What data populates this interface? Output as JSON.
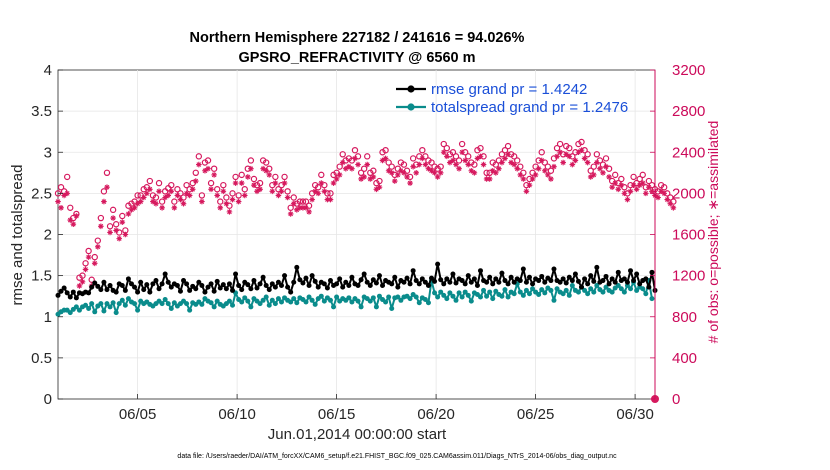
{
  "chart_data": {
    "type": "line",
    "title_line1": "Northern Hemisphere 227182 / 241616 = 94.026%",
    "title_line2": "GPSRO_REFRACTIVITY @ 6560 m",
    "ylabel": "rmse and totalspread",
    "y2label": "# of obs: o=possible; ∗=assimilated",
    "xlabel": "Jun.01,2014 00:00:00 start",
    "footnote": "data file: /Users/raeder/DAI/ATM_forcXX/CAM6_setup/f.e21.FHIST_BGC.f09_025.CAM6assim.011/Diags_NTrS_2014-06/obs_diag_output.nc",
    "xlim": [
      1,
      31
    ],
    "ylim": [
      0,
      4
    ],
    "y2lim": [
      0,
      3200
    ],
    "y_ticks": [
      "0",
      "0.5",
      "1",
      "1.5",
      "2",
      "2.5",
      "3",
      "3.5",
      "4"
    ],
    "y2_ticks": [
      "0",
      "400",
      "800",
      "1200",
      "1600",
      "2000",
      "2400",
      "2800",
      "3200"
    ],
    "x_ticks": [
      {
        "value": 5,
        "label": "06/05"
      },
      {
        "value": 10,
        "label": "06/10"
      },
      {
        "value": 15,
        "label": "06/15"
      },
      {
        "value": 20,
        "label": "06/20"
      },
      {
        "value": 25,
        "label": "06/25"
      },
      {
        "value": 30,
        "label": "06/30"
      }
    ],
    "colors": {
      "rmse": "#000000",
      "totalspread": "#0a8c8c",
      "obs": "#d6195e",
      "legend_text": "#1a4fd8",
      "right_axis": "#cc0a5a"
    },
    "series": [
      {
        "name": "rmse grand pr = 1.4242",
        "axis": "left",
        "values": [
          1.26,
          1.31,
          1.35,
          1.29,
          1.24,
          1.3,
          1.23,
          1.29,
          1.28,
          1.3,
          1.29,
          1.36,
          1.41,
          1.37,
          1.33,
          1.42,
          1.33,
          1.38,
          1.32,
          1.3,
          1.4,
          1.38,
          1.32,
          1.46,
          1.4,
          1.36,
          1.3,
          1.42,
          1.33,
          1.39,
          1.3,
          1.4,
          1.44,
          1.34,
          1.4,
          1.52,
          1.42,
          1.36,
          1.4,
          1.38,
          1.31,
          1.44,
          1.4,
          1.32,
          1.37,
          1.34,
          1.42,
          1.38,
          1.3,
          1.36,
          1.4,
          1.31,
          1.43,
          1.35,
          1.39,
          1.34,
          1.4,
          1.32,
          1.52,
          1.38,
          1.33,
          1.42,
          1.39,
          1.34,
          1.44,
          1.35,
          1.4,
          1.48,
          1.38,
          1.33,
          1.4,
          1.36,
          1.42,
          1.38,
          1.5,
          1.36,
          1.3,
          1.42,
          1.6,
          1.45,
          1.41,
          1.47,
          1.38,
          1.5,
          1.43,
          1.36,
          1.42,
          1.4,
          1.35,
          1.44,
          1.38,
          1.4,
          1.46,
          1.36,
          1.42,
          1.38,
          1.48,
          1.4,
          1.38,
          1.45,
          1.52,
          1.42,
          1.38,
          1.45,
          1.41,
          1.5,
          1.38,
          1.44,
          1.42,
          1.4,
          1.48,
          1.36,
          1.44,
          1.42,
          1.47,
          1.4,
          1.56,
          1.44,
          1.4,
          1.46,
          1.42,
          1.38,
          1.47,
          1.43,
          1.64,
          1.45,
          1.4,
          1.46,
          1.42,
          1.52,
          1.41,
          1.46,
          1.44,
          1.4,
          1.5,
          1.42,
          1.46,
          1.38,
          1.56,
          1.44,
          1.42,
          1.48,
          1.4,
          1.46,
          1.42,
          1.53,
          1.44,
          1.4,
          1.48,
          1.42,
          1.46,
          1.44,
          1.58,
          1.42,
          1.48,
          1.4,
          1.46,
          1.44,
          1.49,
          1.42,
          1.47,
          1.44,
          1.58,
          1.44,
          1.42,
          1.46,
          1.41,
          1.48,
          1.44,
          1.52,
          1.43,
          1.36,
          1.46,
          1.4,
          1.5,
          1.43,
          1.6,
          1.42,
          1.44,
          1.49,
          1.4,
          1.46,
          1.42,
          1.54,
          1.44,
          1.46,
          1.42,
          1.56,
          1.44,
          1.52,
          1.4,
          1.44,
          1.46,
          1.36,
          1.54,
          1.32
        ]
      },
      {
        "name": "totalspread grand pr = 1.2476",
        "axis": "left",
        "values": [
          1.03,
          1.06,
          1.08,
          1.08,
          1.05,
          1.09,
          1.12,
          1.08,
          1.12,
          1.14,
          1.1,
          1.16,
          1.06,
          1.13,
          1.16,
          1.07,
          1.16,
          1.12,
          1.17,
          1.05,
          1.16,
          1.2,
          1.14,
          1.22,
          1.18,
          1.16,
          1.08,
          1.19,
          1.16,
          1.18,
          1.15,
          1.13,
          1.16,
          1.19,
          1.16,
          1.21,
          1.16,
          1.1,
          1.17,
          1.13,
          1.16,
          1.19,
          1.16,
          1.08,
          1.17,
          1.15,
          1.18,
          1.15,
          1.22,
          1.19,
          1.17,
          1.12,
          1.19,
          1.15,
          1.13,
          1.16,
          1.19,
          1.14,
          1.29,
          1.21,
          1.18,
          1.23,
          1.19,
          1.12,
          1.22,
          1.19,
          1.16,
          1.2,
          1.24,
          1.14,
          1.2,
          1.16,
          1.22,
          1.18,
          1.23,
          1.2,
          1.18,
          1.22,
          1.17,
          1.23,
          1.21,
          1.18,
          1.24,
          1.2,
          1.15,
          1.22,
          1.25,
          1.19,
          1.23,
          1.2,
          1.12,
          1.24,
          1.19,
          1.22,
          1.2,
          1.23,
          1.18,
          1.22,
          1.19,
          1.12,
          1.24,
          1.22,
          1.19,
          1.23,
          1.12,
          1.25,
          1.21,
          1.18,
          1.24,
          1.1,
          1.23,
          1.24,
          1.2,
          1.24,
          1.25,
          1.22,
          1.27,
          1.24,
          1.17,
          1.23,
          1.21,
          1.17,
          1.44,
          1.29,
          1.24,
          1.3,
          1.26,
          1.22,
          1.29,
          1.25,
          1.2,
          1.29,
          1.24,
          1.3,
          1.26,
          1.19,
          1.29,
          1.27,
          1.24,
          1.32,
          1.25,
          1.3,
          1.22,
          1.31,
          1.27,
          1.25,
          1.33,
          1.24,
          1.3,
          1.28,
          1.4,
          1.3,
          1.26,
          1.32,
          1.28,
          1.34,
          1.3,
          1.27,
          1.33,
          1.29,
          1.35,
          1.32,
          1.2,
          1.34,
          1.3,
          1.28,
          1.32,
          1.26,
          1.38,
          1.32,
          1.3,
          1.36,
          1.32,
          1.28,
          1.34,
          1.3,
          1.38,
          1.33,
          1.3,
          1.36,
          1.32,
          1.3,
          1.35,
          1.38,
          1.34,
          1.3,
          1.38,
          1.34,
          1.42,
          1.32,
          1.36,
          1.34,
          1.28,
          1.44,
          1.22
        ]
      },
      {
        "name": "possible",
        "axis": "right",
        "marker": "circle",
        "values": [
          2000,
          2060,
          2020,
          2160,
          1860,
          1760,
          1800,
          1180,
          1200,
          1320,
          1440,
          1160,
          1380,
          1540,
          1760,
          2020,
          2200,
          1680,
          1840,
          1700,
          1620,
          1780,
          1640,
          1880,
          1900,
          1920,
          1980,
          1980,
          2040,
          2060,
          2120,
          1980,
          1960,
          2100,
          1920,
          2020,
          2050,
          2080,
          1920,
          2040,
          2000,
          1960,
          2080,
          2040,
          2100,
          2200,
          2360,
          1980,
          2300,
          2320,
          2100,
          2240,
          2040,
          1920,
          2080,
          1960,
          1880,
          2000,
          2160,
          1980,
          2180,
          2040,
          2240,
          2320,
          2140,
          2080,
          2100,
          2320,
          2300,
          2240,
          2080,
          2160,
          2040,
          2080,
          2160,
          2020,
          1860,
          1960,
          1900,
          1920,
          1920,
          1920,
          1880,
          2000,
          2080,
          2060,
          2180,
          2080,
          2000,
          2000,
          2180,
          2200,
          2260,
          2380,
          2320,
          2340,
          2320,
          2420,
          2360,
          2200,
          2240,
          2360,
          2200,
          2220,
          2100,
          2120,
          2400,
          2420,
          2300,
          2260,
          2180,
          2240,
          2300,
          2280,
          2220,
          2160,
          2340,
          2280,
          2360,
          2420,
          2360,
          2320,
          2300,
          2260,
          2240,
          2260,
          2480,
          2440,
          2380,
          2400,
          2360,
          2320,
          2480,
          2400,
          2360,
          2300,
          2280,
          2420,
          2440,
          2360,
          2200,
          2200,
          2300,
          2280,
          2320,
          2380,
          2420,
          2460,
          2380,
          2360,
          2320,
          2260,
          2200,
          2080,
          2140,
          2200,
          2260,
          2320,
          2400,
          2300,
          2260,
          2220,
          2340,
          2440,
          2480,
          2380,
          2460,
          2440,
          2360,
          2400,
          2480,
          2500,
          2420,
          2380,
          2220,
          2260,
          2380,
          2320,
          2280,
          2340,
          2240,
          2120,
          2180,
          2100,
          2140,
          2060,
          2000,
          2080,
          2160,
          2100,
          2140,
          2180,
          2060,
          2120,
          2080,
          2040,
          2020,
          2080,
          2060,
          2000,
          1960,
          1920
        ]
      },
      {
        "name": "assimilated",
        "axis": "right",
        "marker": "star",
        "values": [
          1920,
          1860,
          1980,
          2000,
          1740,
          1700,
          1780,
          1100,
          1140,
          1260,
          1380,
          1100,
          1320,
          1480,
          1680,
          1920,
          2060,
          1620,
          1760,
          1640,
          1560,
          1720,
          1600,
          1800,
          1840,
          1860,
          1900,
          1920,
          1960,
          2000,
          2040,
          1920,
          1900,
          2020,
          1860,
          1960,
          1980,
          2020,
          1860,
          1980,
          1940,
          1900,
          2000,
          1980,
          2040,
          2120,
          2280,
          1920,
          2220,
          2240,
          2040,
          2180,
          1980,
          1860,
          2020,
          1900,
          1820,
          1940,
          2100,
          1920,
          2100,
          1980,
          2160,
          2240,
          2080,
          2020,
          2040,
          2240,
          2220,
          2180,
          2020,
          2100,
          1980,
          2020,
          2100,
          1960,
          1800,
          1900,
          1840,
          1860,
          1860,
          1860,
          1820,
          1940,
          2020,
          2000,
          2100,
          2020,
          1940,
          1940,
          2100,
          2140,
          2180,
          2300,
          2240,
          2260,
          2240,
          2340,
          2280,
          2140,
          2160,
          2280,
          2140,
          2160,
          2040,
          2060,
          2320,
          2340,
          2220,
          2200,
          2120,
          2180,
          2220,
          2200,
          2160,
          2100,
          2260,
          2200,
          2280,
          2340,
          2280,
          2240,
          2220,
          2200,
          2160,
          2200,
          2400,
          2360,
          2300,
          2320,
          2280,
          2240,
          2400,
          2320,
          2280,
          2220,
          2200,
          2340,
          2360,
          2280,
          2140,
          2140,
          2220,
          2200,
          2240,
          2300,
          2340,
          2380,
          2300,
          2280,
          2240,
          2180,
          2140,
          2020,
          2080,
          2140,
          2180,
          2240,
          2320,
          2220,
          2180,
          2140,
          2260,
          2360,
          2400,
          2300,
          2380,
          2360,
          2280,
          2320,
          2400,
          2420,
          2340,
          2300,
          2160,
          2180,
          2300,
          2240,
          2200,
          2260,
          2160,
          2060,
          2100,
          2040,
          2080,
          2000,
          1940,
          2020,
          2080,
          2040,
          2080,
          2100,
          2000,
          2060,
          2020,
          1980,
          1960,
          2020,
          2000,
          1940,
          1900,
          1860
        ]
      }
    ]
  }
}
